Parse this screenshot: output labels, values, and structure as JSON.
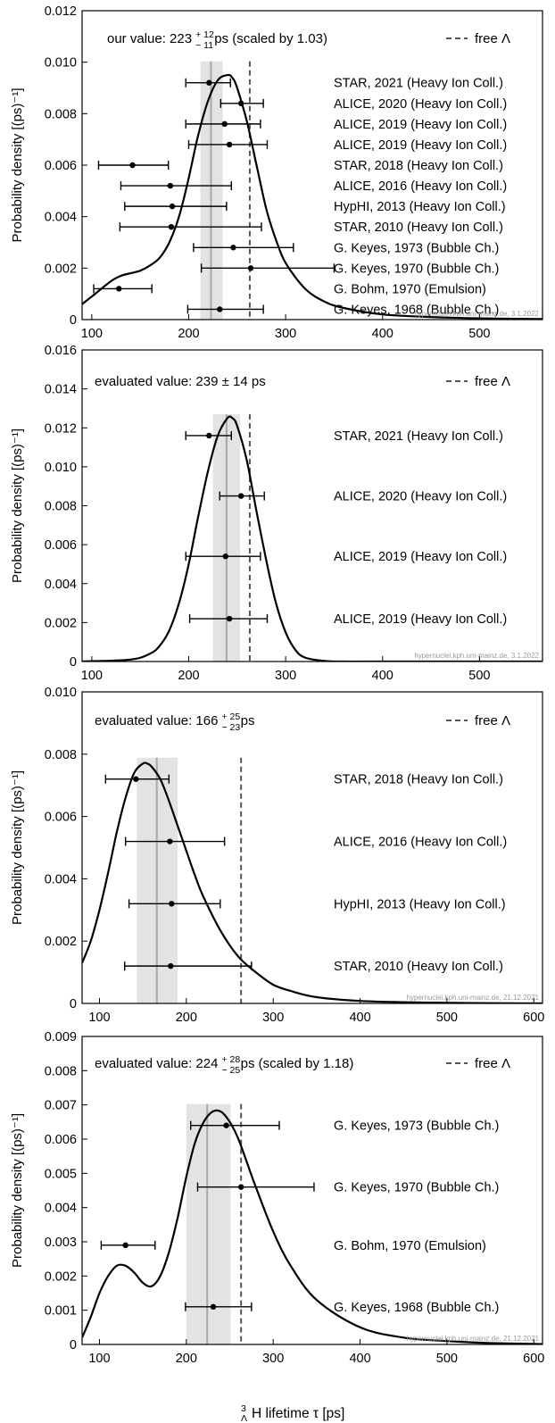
{
  "figure": {
    "xlabel_pre": "3",
    "xlabel_sub": "Λ",
    "xlabel_post": "H  lifetime τ [ps]"
  },
  "colors": {
    "band": "#e3e3e3",
    "center_line": "#a8a8a8",
    "free_line": "#555555",
    "curve": "#000000"
  },
  "chart_data": [
    {
      "type": "line",
      "title_pre": "our value: 223",
      "title_sup": "+ 12",
      "title_sub": "− 11",
      "title_post": " ps  (scaled by 1.03)",
      "legend": "free Λ",
      "ylabel": "Probability density [(ps)⁻¹]",
      "xlim": [
        90,
        565
      ],
      "ylim": [
        0,
        0.012
      ],
      "xticks": [
        100,
        200,
        300,
        400,
        500
      ],
      "yticks": [
        "0",
        "0.002",
        "0.004",
        "0.006",
        "0.008",
        "0.010",
        "0.012"
      ],
      "ytick_values": [
        0,
        0.002,
        0.004,
        0.006,
        0.008,
        0.01,
        0.012
      ],
      "center": 223,
      "band": [
        212,
        235
      ],
      "free": 263,
      "curve_x": [
        90,
        100,
        110,
        120,
        130,
        140,
        150,
        160,
        170,
        180,
        190,
        200,
        210,
        220,
        230,
        240,
        245,
        250,
        260,
        270,
        280,
        290,
        300,
        320,
        340,
        360,
        400,
        450,
        500,
        565
      ],
      "curve_y": [
        0.0006,
        0.0009,
        0.0012,
        0.0015,
        0.0017,
        0.0018,
        0.0019,
        0.0021,
        0.0024,
        0.003,
        0.004,
        0.0055,
        0.0072,
        0.0085,
        0.0093,
        0.0095,
        0.0094,
        0.009,
        0.0077,
        0.006,
        0.0043,
        0.0031,
        0.0022,
        0.0012,
        0.0007,
        0.00045,
        0.0002,
        0.0001,
        5e-05,
        2e-05
      ],
      "measurements": [
        {
          "label": "STAR, 2021 (Heavy Ion Coll.)",
          "value": 221,
          "low": 197,
          "high": 243,
          "y": 0.0092
        },
        {
          "label": "ALICE, 2020 (Heavy Ion Coll.)",
          "value": 254,
          "low": 233,
          "high": 277,
          "y": 0.0084
        },
        {
          "label": "ALICE, 2019 (Heavy Ion Coll.)",
          "value": 237,
          "low": 197,
          "high": 274,
          "y": 0.0076
        },
        {
          "label": "ALICE, 2019 (Heavy Ion Coll.)",
          "value": 242,
          "low": 200,
          "high": 281,
          "y": 0.0068
        },
        {
          "label": "STAR, 2018 (Heavy Ion Coll.)",
          "value": 142,
          "low": 107,
          "high": 179,
          "y": 0.006
        },
        {
          "label": "ALICE, 2016 (Heavy Ion Coll.)",
          "value": 181,
          "low": 130,
          "high": 244,
          "y": 0.0052
        },
        {
          "label": "HypHI, 2013 (Heavy Ion Coll.)",
          "value": 183,
          "low": 134,
          "high": 239,
          "y": 0.0044
        },
        {
          "label": "STAR, 2010 (Heavy Ion Coll.)",
          "value": 182,
          "low": 129,
          "high": 275,
          "y": 0.0036
        },
        {
          "label": "G. Keyes, 1973 (Bubble Ch.)",
          "value": 246,
          "low": 205,
          "high": 308,
          "y": 0.0028
        },
        {
          "label": "G. Keyes, 1970 (Bubble Ch.)",
          "value": 264,
          "low": 213,
          "high": 350,
          "y": 0.002
        },
        {
          "label": "G. Bohm, 1970 (Emulsion)",
          "value": 128,
          "low": 102,
          "high": 162,
          "y": 0.0012
        },
        {
          "label": "G. Keyes, 1968 (Bubble Ch.)",
          "value": 232,
          "low": 199,
          "high": 277,
          "y": 0.0004
        }
      ],
      "watermark": "hypernuclei.kph.uni-mainz.de, 3.1.2022"
    },
    {
      "type": "line",
      "title_pre": "evaluated value: 239 ± 14 ps",
      "title_sup": "",
      "title_sub": "",
      "title_post": "",
      "legend": "free Λ",
      "ylabel": "Probability density [(ps)⁻¹]",
      "xlim": [
        90,
        565
      ],
      "ylim": [
        0,
        0.016
      ],
      "xticks": [
        100,
        200,
        300,
        400,
        500
      ],
      "yticks": [
        "0",
        "0.002",
        "0.004",
        "0.006",
        "0.008",
        "0.010",
        "0.012",
        "0.014",
        "0.016"
      ],
      "ytick_values": [
        0,
        0.002,
        0.004,
        0.006,
        0.008,
        0.01,
        0.012,
        0.014,
        0.016
      ],
      "center": 239,
      "band": [
        225,
        253
      ],
      "free": 263,
      "curve_x": [
        90,
        140,
        160,
        170,
        180,
        190,
        200,
        210,
        220,
        230,
        240,
        245,
        250,
        260,
        270,
        280,
        290,
        300,
        310,
        320,
        340,
        360,
        400,
        565
      ],
      "curve_y": [
        0,
        0.0001,
        0.0004,
        0.0008,
        0.0016,
        0.003,
        0.005,
        0.0075,
        0.0098,
        0.0116,
        0.0125,
        0.0125,
        0.0121,
        0.0103,
        0.0077,
        0.0052,
        0.003,
        0.0015,
        0.0006,
        0.0002,
        3e-05,
        0,
        0,
        0
      ],
      "measurements": [
        {
          "label": "STAR, 2021 (Heavy Ion Coll.)",
          "value": 221,
          "low": 197,
          "high": 244,
          "y": 0.0116
        },
        {
          "label": "ALICE, 2020 (Heavy Ion Coll.)",
          "value": 254,
          "low": 232,
          "high": 278,
          "y": 0.0085
        },
        {
          "label": "ALICE, 2019 (Heavy Ion Coll.)",
          "value": 238,
          "low": 197,
          "high": 274,
          "y": 0.0054
        },
        {
          "label": "ALICE, 2019 (Heavy Ion Coll.)",
          "value": 242,
          "low": 201,
          "high": 281,
          "y": 0.0022
        }
      ],
      "watermark": "hypernuclei.kph.uni-mainz.de, 3.1.2022"
    },
    {
      "type": "line",
      "title_pre": "evaluated value: 166",
      "title_sup": "+ 25",
      "title_sub": "− 23",
      "title_post": " ps",
      "legend": "free Λ",
      "ylabel": "Probability density [(ps)⁻¹]",
      "xlim": [
        80,
        610
      ],
      "ylim": [
        0,
        0.01
      ],
      "xticks": [
        100,
        200,
        300,
        400,
        500,
        600
      ],
      "yticks": [
        "0",
        "0.002",
        "0.004",
        "0.006",
        "0.008",
        "0.010"
      ],
      "ytick_values": [
        0,
        0.002,
        0.004,
        0.006,
        0.008,
        0.01
      ],
      "center": 166,
      "band": [
        143,
        190
      ],
      "free": 263,
      "curve_x": [
        80,
        90,
        100,
        110,
        120,
        130,
        140,
        150,
        155,
        160,
        170,
        180,
        190,
        200,
        210,
        220,
        240,
        260,
        280,
        300,
        320,
        350,
        400,
        450,
        500,
        550,
        610
      ],
      "curve_y": [
        0.0013,
        0.002,
        0.003,
        0.0042,
        0.0055,
        0.0066,
        0.0074,
        0.0077,
        0.0077,
        0.0076,
        0.0072,
        0.0065,
        0.0057,
        0.0049,
        0.0041,
        0.0034,
        0.0023,
        0.0015,
        0.001,
        0.0006,
        0.0004,
        0.0002,
        8e-05,
        4e-05,
        2e-05,
        1e-05,
        0
      ],
      "measurements": [
        {
          "label": "STAR, 2018 (Heavy Ion Coll.)",
          "value": 142,
          "low": 107,
          "high": 180,
          "y": 0.0072
        },
        {
          "label": "ALICE, 2016 (Heavy Ion Coll.)",
          "value": 181,
          "low": 130,
          "high": 244,
          "y": 0.0052
        },
        {
          "label": "HypHI, 2013 (Heavy Ion Coll.)",
          "value": 183,
          "low": 134,
          "high": 239,
          "y": 0.0032
        },
        {
          "label": "STAR, 2010 (Heavy Ion Coll.)",
          "value": 182,
          "low": 129,
          "high": 275,
          "y": 0.0012
        }
      ],
      "watermark": "hypernuclei.kph.uni-mainz.de, 21.12.2021"
    },
    {
      "type": "line",
      "title_pre": "evaluated value: 224",
      "title_sup": "+ 28",
      "title_sub": "− 25",
      "title_post": " ps  (scaled by 1.18)",
      "legend": "free Λ",
      "ylabel": "Probability density [(ps)⁻¹]",
      "xlim": [
        80,
        610
      ],
      "ylim": [
        0,
        0.009
      ],
      "xticks": [
        100,
        200,
        300,
        400,
        500,
        600
      ],
      "yticks": [
        "0",
        "0.001",
        "0.002",
        "0.003",
        "0.004",
        "0.005",
        "0.006",
        "0.007",
        "0.008",
        "0.009"
      ],
      "ytick_values": [
        0,
        0.001,
        0.002,
        0.003,
        0.004,
        0.005,
        0.006,
        0.007,
        0.008,
        0.009
      ],
      "center": 224,
      "band": [
        200,
        251
      ],
      "free": 263,
      "curve_x": [
        80,
        90,
        100,
        110,
        120,
        130,
        140,
        150,
        160,
        170,
        180,
        190,
        200,
        210,
        220,
        230,
        240,
        250,
        260,
        270,
        280,
        300,
        320,
        350,
        400,
        450,
        500,
        550,
        610
      ],
      "curve_y": [
        0.0002,
        0.0008,
        0.0015,
        0.002,
        0.0023,
        0.0023,
        0.0021,
        0.0018,
        0.0017,
        0.002,
        0.0027,
        0.0037,
        0.0049,
        0.0059,
        0.0065,
        0.0068,
        0.0068,
        0.0065,
        0.006,
        0.0053,
        0.0046,
        0.0033,
        0.0023,
        0.0013,
        0.0005,
        0.0002,
        0.0001,
        4e-05,
        1e-05
      ],
      "measurements": [
        {
          "label": "G. Keyes, 1973 (Bubble Ch.)",
          "value": 246,
          "low": 205,
          "high": 307,
          "y": 0.0064
        },
        {
          "label": "G. Keyes, 1970 (Bubble Ch.)",
          "value": 263,
          "low": 213,
          "high": 347,
          "y": 0.0046
        },
        {
          "label": "G. Bohm, 1970 (Emulsion)",
          "value": 130,
          "low": 102,
          "high": 164,
          "y": 0.0029
        },
        {
          "label": "G. Keyes, 1968 (Bubble Ch.)",
          "value": 231,
          "low": 199,
          "high": 275,
          "y": 0.0011
        }
      ],
      "watermark": "hypernuclei.kph.uni-mainz.de, 21.12.2021"
    }
  ]
}
